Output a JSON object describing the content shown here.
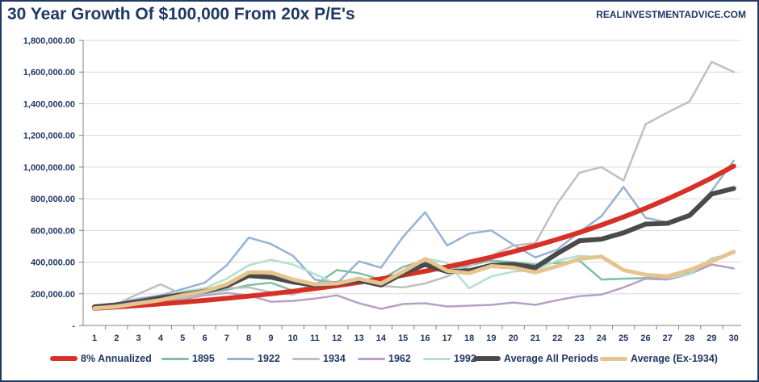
{
  "header": {
    "title": "30 Year Growth Of $100,000 From 20x P/E's",
    "source": "REALINVESTMENTADVICE.COM"
  },
  "chart_data": {
    "type": "line",
    "title": "30 Year Growth Of $100,000 From 20x P/E's",
    "xlabel": "",
    "ylabel": "",
    "ylim": [
      0,
      1800000
    ],
    "yticks": [
      0,
      200000,
      400000,
      600000,
      800000,
      1000000,
      1200000,
      1400000,
      1600000,
      1800000
    ],
    "ytick_labels": [
      "-",
      "200,000.00",
      "400,000.00",
      "600,000.00",
      "800,000.00",
      "1,000,000.00",
      "1,200,000.00",
      "1,400,000.00",
      "1,600,000.00",
      "1,800,000.00"
    ],
    "x": [
      1,
      2,
      3,
      4,
      5,
      6,
      7,
      8,
      9,
      10,
      11,
      12,
      13,
      14,
      15,
      16,
      17,
      18,
      19,
      20,
      21,
      22,
      23,
      24,
      25,
      26,
      27,
      28,
      29,
      30
    ],
    "grid": true,
    "legend_position": "bottom",
    "series": [
      {
        "name": "1895",
        "color": "#7fbfa5",
        "width": 2.5,
        "values": [
          108000,
          115000,
          125000,
          150000,
          180000,
          205000,
          225000,
          255000,
          270000,
          220000,
          255000,
          350000,
          330000,
          290000,
          370000,
          410000,
          355000,
          380000,
          410000,
          400000,
          385000,
          395000,
          410000,
          290000,
          295000,
          300000,
          305000,
          335000,
          400000,
          465000
        ]
      },
      {
        "name": "1922",
        "color": "#95b3d7",
        "width": 2.5,
        "values": [
          105000,
          140000,
          170000,
          190000,
          230000,
          270000,
          380000,
          555000,
          515000,
          440000,
          290000,
          265000,
          405000,
          365000,
          560000,
          715000,
          505000,
          580000,
          600000,
          510000,
          430000,
          480000,
          590000,
          690000,
          875000,
          680000,
          650000,
          700000,
          850000,
          1040000
        ]
      },
      {
        "name": "1934",
        "color": "#bfbfbf",
        "width": 2.5,
        "values": [
          115000,
          135000,
          200000,
          260000,
          195000,
          230000,
          235000,
          240000,
          210000,
          195000,
          240000,
          270000,
          280000,
          250000,
          240000,
          265000,
          310000,
          375000,
          440000,
          505000,
          520000,
          770000,
          965000,
          1000000,
          915000,
          1270000,
          1345000,
          1415000,
          1665000,
          1600000
        ]
      },
      {
        "name": "1962",
        "color": "#b7a0c3",
        "width": 2.5,
        "values": [
          105000,
          110000,
          120000,
          140000,
          165000,
          190000,
          205000,
          190000,
          150000,
          155000,
          170000,
          190000,
          140000,
          105000,
          135000,
          140000,
          120000,
          125000,
          130000,
          145000,
          130000,
          160000,
          185000,
          195000,
          240000,
          295000,
          290000,
          325000,
          385000,
          360000
        ]
      },
      {
        "name": "1992",
        "color": "#b3e0cf",
        "width": 2.5,
        "values": [
          110000,
          125000,
          145000,
          170000,
          215000,
          235000,
          295000,
          380000,
          415000,
          385000,
          325000,
          260000,
          285000,
          290000,
          325000,
          425000,
          395000,
          235000,
          310000,
          340000,
          350000,
          410000,
          440000,
          430000,
          355000,
          320000,
          300000,
          325000,
          425000,
          455000
        ]
      },
      {
        "name": "8% Annualized",
        "color": "#d73027",
        "width": 6,
        "values": [
          108000,
          116640,
          125971,
          136049,
          146933,
          158687,
          171382,
          185093,
          199900,
          215892,
          233164,
          251817,
          271962,
          293719,
          317217,
          342594,
          370002,
          399602,
          431570,
          466096,
          503383,
          543654,
          587146,
          634118,
          684848,
          739635,
          798806,
          862711,
          931727,
          1006266
        ]
      },
      {
        "name": "Average All Periods",
        "color": "#4a4a4a",
        "width": 6,
        "values": [
          118000,
          130000,
          150000,
          175000,
          195000,
          215000,
          250000,
          315000,
          305000,
          275000,
          255000,
          265000,
          285000,
          255000,
          330000,
          385000,
          340000,
          345000,
          380000,
          385000,
          365000,
          455000,
          535000,
          545000,
          585000,
          640000,
          645000,
          695000,
          830000,
          865000
        ]
      },
      {
        "name": "Average (Ex-1934)",
        "color": "#e6c48f",
        "width": 5,
        "values": [
          108000,
          120000,
          140000,
          160000,
          190000,
          215000,
          260000,
          335000,
          335000,
          290000,
          260000,
          265000,
          295000,
          265000,
          340000,
          420000,
          345000,
          330000,
          375000,
          365000,
          335000,
          375000,
          420000,
          435000,
          350000,
          320000,
          310000,
          350000,
          405000,
          465000
        ]
      }
    ],
    "legend": [
      {
        "name": "8% Annualized",
        "color": "#d73027",
        "thickness": 6
      },
      {
        "name": "1895",
        "color": "#7fbfa5",
        "thickness": 3
      },
      {
        "name": "1922",
        "color": "#95b3d7",
        "thickness": 3
      },
      {
        "name": "1934",
        "color": "#bfbfbf",
        "thickness": 3
      },
      {
        "name": "1962",
        "color": "#b7a0c3",
        "thickness": 3
      },
      {
        "name": "1992",
        "color": "#b3e0cf",
        "thickness": 3
      },
      {
        "name": "Average All Periods",
        "color": "#4a4a4a",
        "thickness": 6
      },
      {
        "name": "Average (Ex-1934)",
        "color": "#e6c48f",
        "thickness": 5
      }
    ]
  }
}
